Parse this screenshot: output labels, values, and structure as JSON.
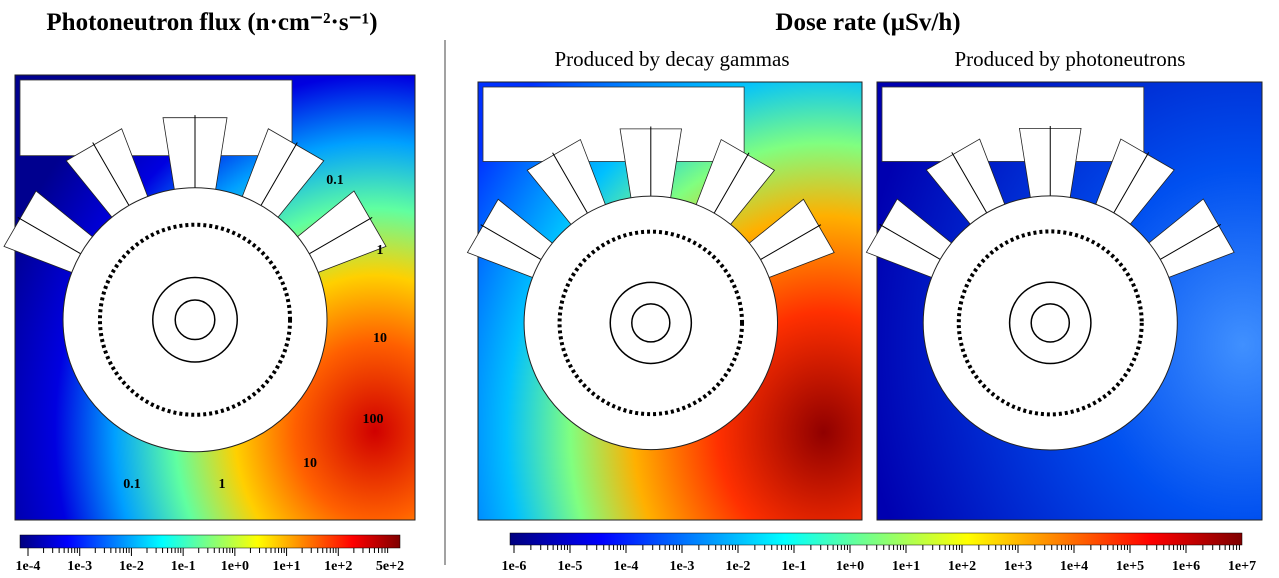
{
  "left": {
    "title": "Photoneutron flux (n·cm⁻²·s⁻¹)",
    "contour_labels": [
      "0.1",
      "1",
      "10",
      "100",
      "10",
      "1",
      "0.1"
    ],
    "colorbar_ticks": [
      "1e-4",
      "1e-3",
      "1e-2",
      "1e-1",
      "1e+0",
      "1e+1",
      "1e+2",
      "5e+2"
    ]
  },
  "right": {
    "title": "Dose rate (µSv/h)",
    "subtitles": [
      "Produced by decay gammas",
      "Produced by photoneutrons"
    ],
    "colorbar_ticks": [
      "1e-6",
      "1e-5",
      "1e-4",
      "1e-3",
      "1e-2",
      "1e-1",
      "1e+0",
      "1e+1",
      "1e+2",
      "1e+3",
      "1e+4",
      "1e+5",
      "1e+6",
      "1e+7"
    ]
  }
}
